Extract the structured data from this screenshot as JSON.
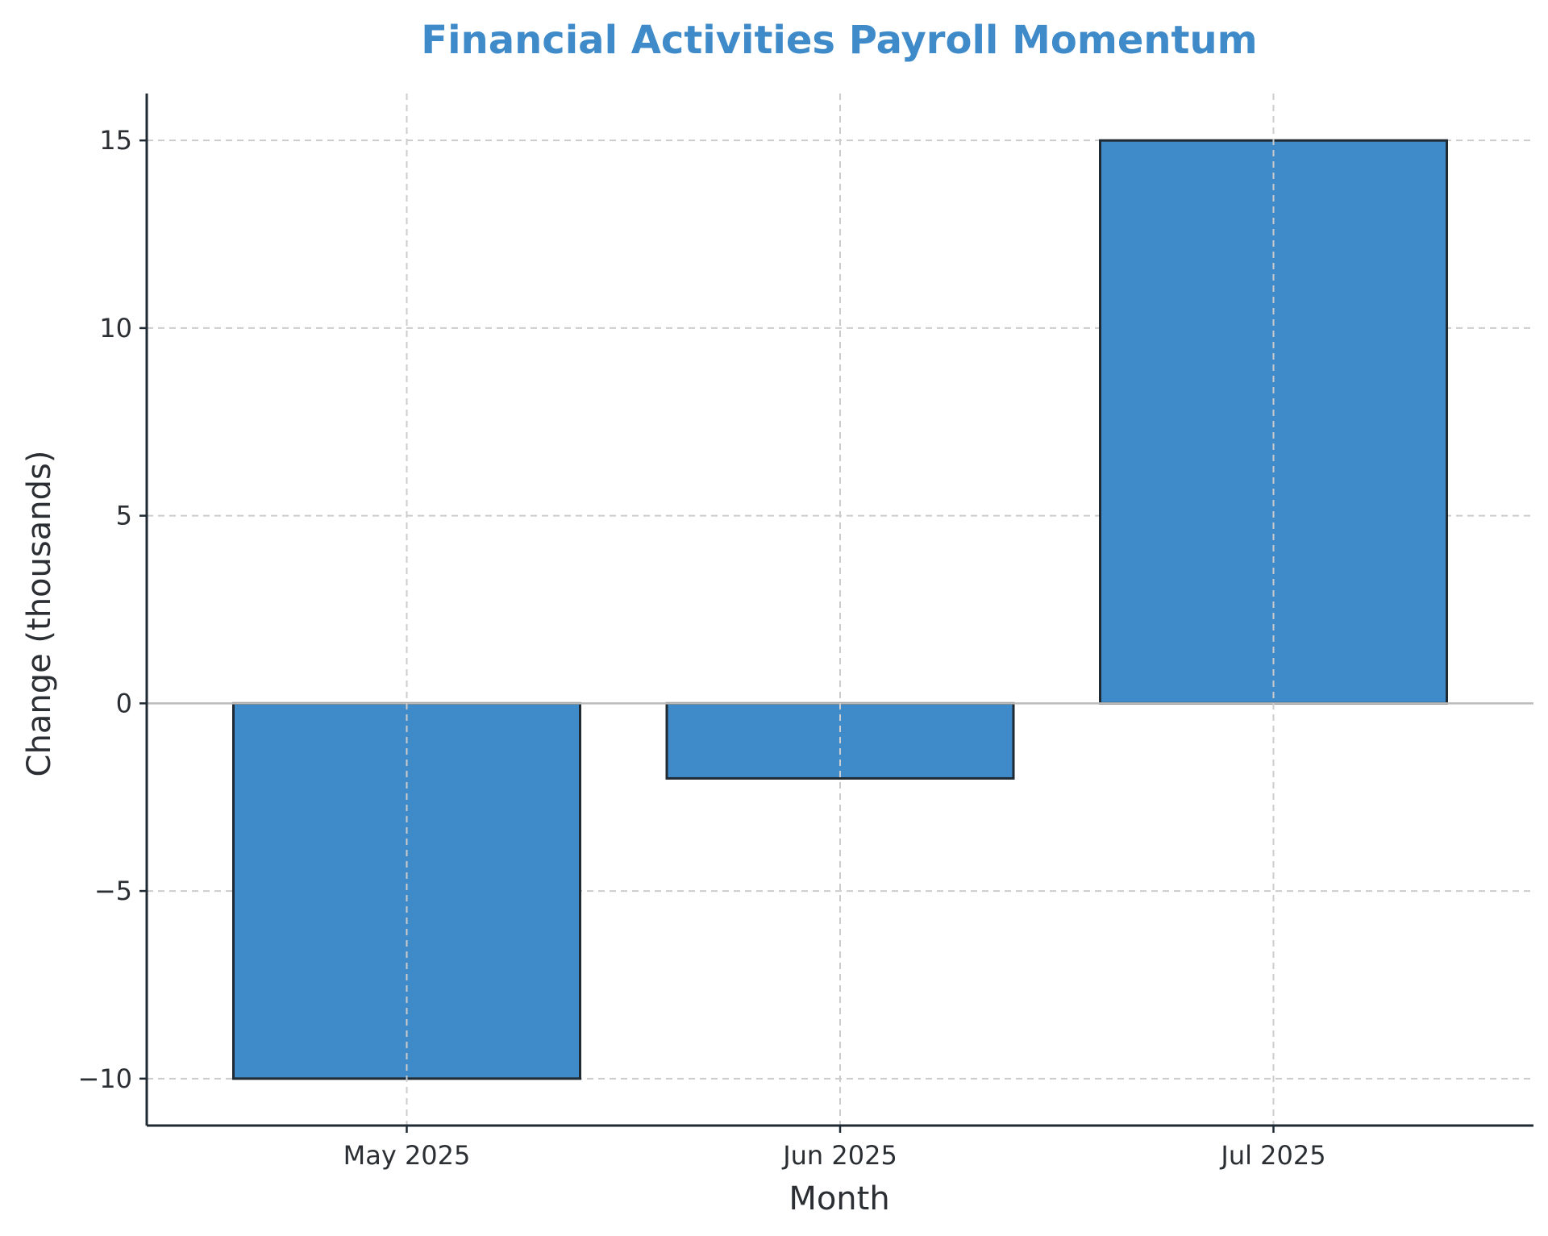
{
  "chart_data": {
    "type": "bar",
    "title": "Financial Activities Payroll Momentum",
    "xlabel": "Month",
    "ylabel": "Change (thousands)",
    "categories": [
      "May 2025",
      "Jun 2025",
      "Jul 2025"
    ],
    "values": [
      -10,
      -2,
      15
    ],
    "ylim": [
      -11.25,
      16.25
    ],
    "yticks": [
      -10,
      -5,
      0,
      5,
      10,
      15
    ],
    "ytick_labels": [
      "−10",
      "−5",
      "0",
      "5",
      "10",
      "15"
    ],
    "grid": true,
    "colors": {
      "bar_fill": "#3f8ac9",
      "bar_edge": "#1f2a33",
      "title": "#3f8ac9",
      "text": "#2b2f33",
      "grid": "#cccccc",
      "axis": "#1f2a33",
      "zero_line": "#bbbbbb"
    }
  }
}
